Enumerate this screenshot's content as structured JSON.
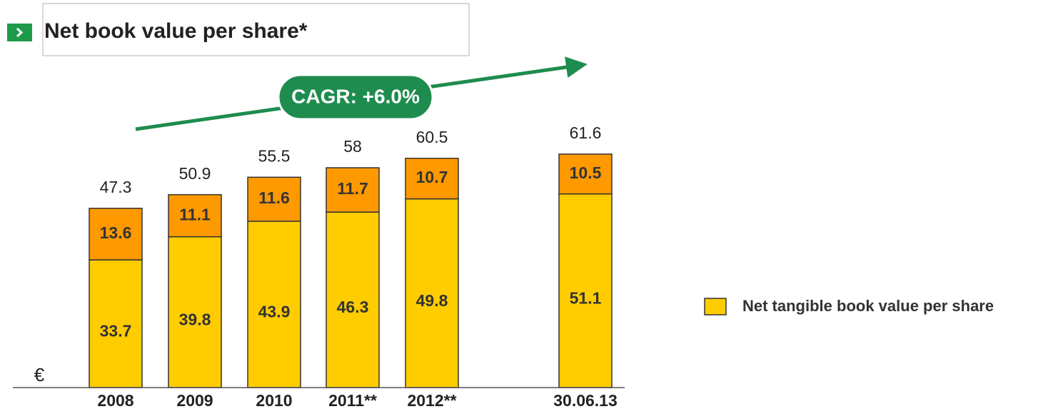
{
  "chart_data": {
    "type": "bar",
    "stacked": true,
    "title": "Net book value per share*",
    "annotation": "CAGR: +6.0%",
    "unit_label": "€",
    "categories": [
      "2008",
      "2009",
      "2010",
      "2011**",
      "2012**",
      "30.06.13"
    ],
    "series": [
      {
        "name": "Net tangible book value per share",
        "color": "#ffcc00",
        "values": [
          33.7,
          39.8,
          43.9,
          46.3,
          49.8,
          51.1
        ]
      },
      {
        "color": "#ff9900",
        "values": [
          13.6,
          11.1,
          11.6,
          11.7,
          10.7,
          10.5
        ]
      }
    ],
    "totals": [
      47.3,
      50.9,
      55.5,
      58.0,
      60.5,
      61.6
    ],
    "legend": "right"
  }
}
